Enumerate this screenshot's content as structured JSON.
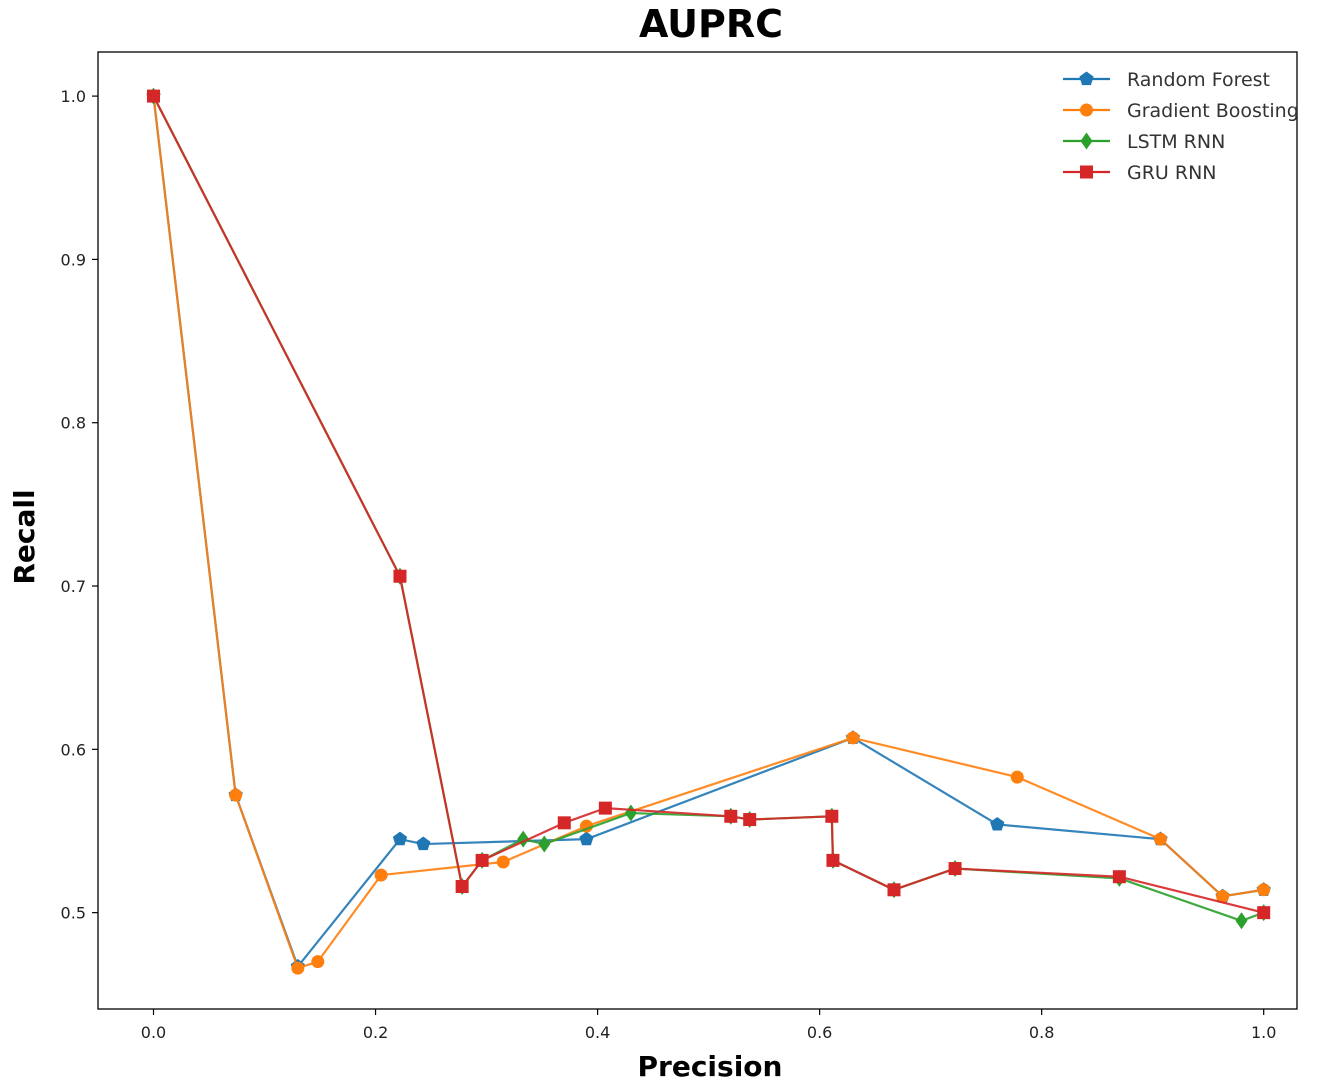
{
  "chart_data": {
    "type": "line",
    "title": "AUPRC",
    "xlabel": "Precision",
    "ylabel": "Recall",
    "xlim": [
      -0.05,
      1.03
    ],
    "ylim": [
      0.441,
      1.027
    ],
    "xticks": [
      0.0,
      0.2,
      0.4,
      0.6,
      0.8,
      1.0
    ],
    "xtick_labels": [
      "0.0",
      "0.2",
      "0.4",
      "0.6",
      "0.8",
      "1.0"
    ],
    "yticks": [
      0.5,
      0.6,
      0.7,
      0.8,
      0.9,
      1.0
    ],
    "ytick_labels": [
      "0.5",
      "0.6",
      "0.7",
      "0.8",
      "0.9",
      "1.0"
    ],
    "grid": false,
    "legend_position": "top-right",
    "series": [
      {
        "name": "Random Forest",
        "color": "#1f77b4",
        "marker": "pentagon",
        "x": [
          0.0,
          0.074,
          0.13,
          0.222,
          0.243,
          0.39,
          0.63,
          0.76,
          0.907,
          0.963,
          1.0
        ],
        "y": [
          1.0,
          0.572,
          0.467,
          0.545,
          0.542,
          0.545,
          0.607,
          0.554,
          0.545,
          0.51,
          0.514
        ]
      },
      {
        "name": "Gradient Boosting",
        "color": "#ff7f0e",
        "marker": "circle",
        "x": [
          0.0,
          0.074,
          0.13,
          0.148,
          0.205,
          0.315,
          0.39,
          0.63,
          0.778,
          0.907,
          0.963,
          1.0
        ],
        "y": [
          1.0,
          0.572,
          0.466,
          0.47,
          0.523,
          0.531,
          0.553,
          0.607,
          0.583,
          0.545,
          0.51,
          0.514
        ]
      },
      {
        "name": "LSTM RNN",
        "color": "#2ca02c",
        "marker": "diamond",
        "x": [
          0.0,
          0.222,
          0.278,
          0.296,
          0.333,
          0.352,
          0.43,
          0.52,
          0.537,
          0.611,
          0.612,
          0.667,
          0.722,
          0.87,
          0.98,
          1.0
        ],
        "y": [
          1.0,
          0.706,
          0.516,
          0.532,
          0.545,
          0.542,
          0.561,
          0.559,
          0.557,
          0.559,
          0.532,
          0.514,
          0.527,
          0.521,
          0.495,
          0.5
        ]
      },
      {
        "name": "GRU RNN",
        "color": "#d62728",
        "marker": "square",
        "x": [
          0.0,
          0.222,
          0.278,
          0.296,
          0.37,
          0.407,
          0.52,
          0.537,
          0.611,
          0.612,
          0.667,
          0.722,
          0.87,
          1.0
        ],
        "y": [
          1.0,
          0.706,
          0.516,
          0.532,
          0.555,
          0.564,
          0.559,
          0.557,
          0.559,
          0.532,
          0.514,
          0.527,
          0.522,
          0.5
        ]
      }
    ]
  }
}
